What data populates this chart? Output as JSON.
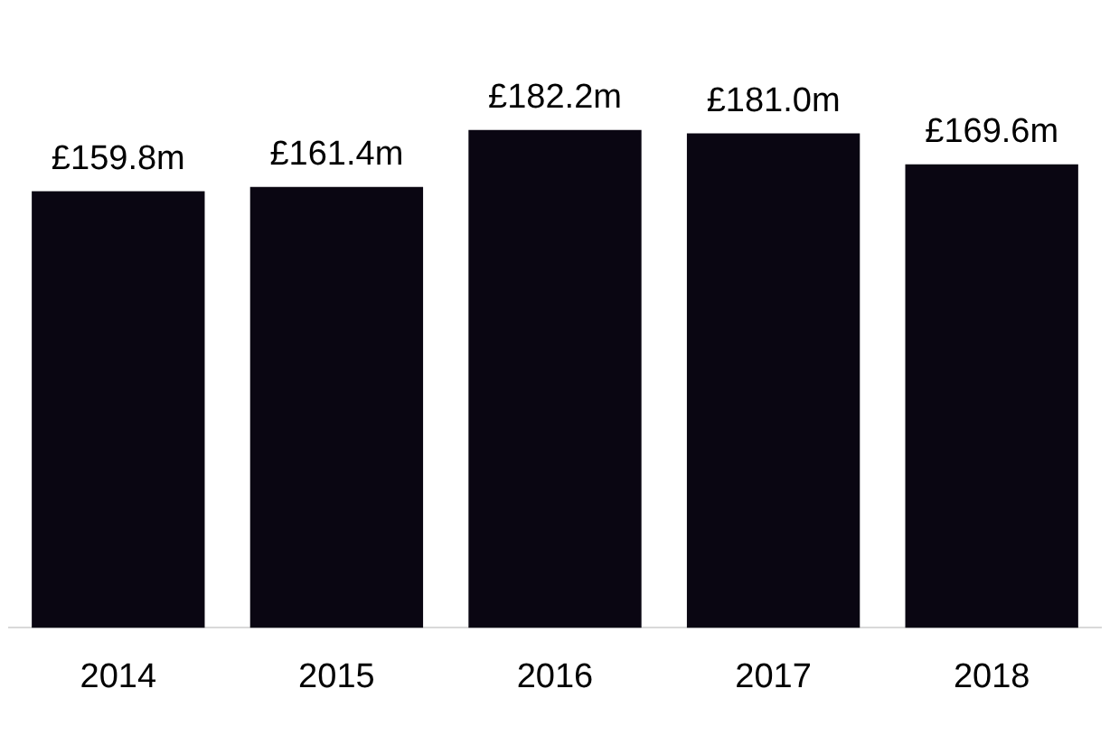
{
  "chart_data": {
    "type": "bar",
    "categories": [
      "2014",
      "2015",
      "2016",
      "2017",
      "2018"
    ],
    "values": [
      159.8,
      161.4,
      182.2,
      181.0,
      169.6
    ],
    "value_labels": [
      "£159.8m",
      "£161.4m",
      "£182.2m",
      "£181.0m",
      "£169.6m"
    ],
    "color": "#0a0612"
  }
}
